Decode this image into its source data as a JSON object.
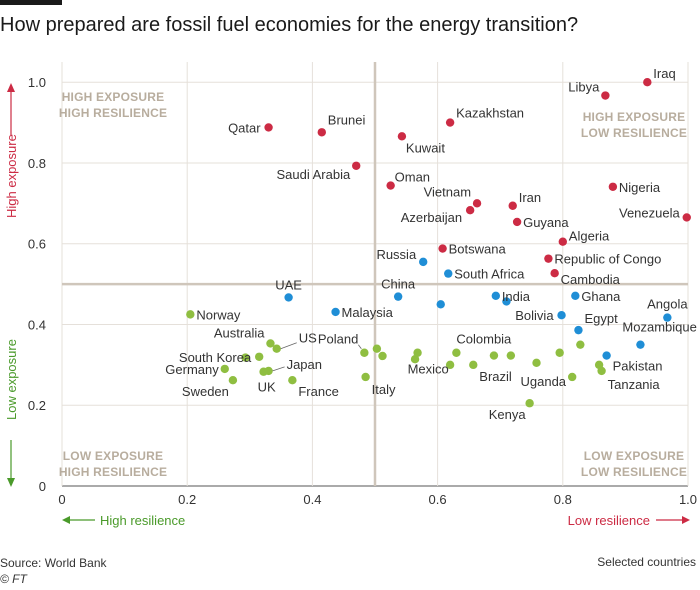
{
  "title": "How prepared are fossil fuel economies for the energy transition?",
  "footer": {
    "source": "Source: World Bank",
    "credit": "© FT",
    "note": "Selected countries"
  },
  "axes": {
    "y_high_label": "High exposure",
    "y_low_label": "Low exposure",
    "x_high_label": "High resilience",
    "x_low_label": "Low resilience"
  },
  "quadrants": {
    "top_left": [
      "HIGH EXPOSURE",
      "HIGH RESILIENCE"
    ],
    "top_right": [
      "HIGH EXPOSURE",
      "LOW RESILIENCE"
    ],
    "bottom_left": [
      "LOW EXPOSURE",
      "HIGH RESILIENCE"
    ],
    "bottom_right": [
      "LOW EXPOSURE",
      "LOW RESILIENCE"
    ]
  },
  "colors": {
    "red": "#cc2b44",
    "blue": "#1f8ed6",
    "green": "#8fbe41",
    "grid": "#e5e0da",
    "divider": "#cfc6bb",
    "quad_text": "#b8ad9e"
  },
  "chart_data": {
    "type": "scatter",
    "title": "How prepared are fossil fuel economies for the energy transition?",
    "xlim": [
      0,
      1
    ],
    "ylim": [
      0,
      1.05
    ],
    "xticks": [
      "0",
      "0.2",
      "0.4",
      "0.6",
      "0.8",
      "1.0"
    ],
    "yticks": [
      "0",
      "0.2",
      "0.4",
      "0.6",
      "0.8",
      "1.0"
    ],
    "thresholds": {
      "x": 0.5,
      "y": 0.5
    },
    "grid": true,
    "points": [
      {
        "name": "Iraq",
        "x": 0.935,
        "y": 1.0,
        "group": "red"
      },
      {
        "name": "Libya",
        "x": 0.868,
        "y": 0.967,
        "group": "red"
      },
      {
        "name": "Qatar",
        "x": 0.33,
        "y": 0.888,
        "group": "red"
      },
      {
        "name": "Brunei",
        "x": 0.415,
        "y": 0.876,
        "group": "red"
      },
      {
        "name": "Kuwait",
        "x": 0.543,
        "y": 0.866,
        "group": "red"
      },
      {
        "name": "Kazakhstan",
        "x": 0.62,
        "y": 0.9,
        "group": "red"
      },
      {
        "name": "Saudi Arabia",
        "x": 0.47,
        "y": 0.793,
        "group": "red"
      },
      {
        "name": "Oman",
        "x": 0.525,
        "y": 0.744,
        "group": "red"
      },
      {
        "name": "Nigeria",
        "x": 0.88,
        "y": 0.741,
        "group": "red"
      },
      {
        "name": "Vietnam",
        "x": 0.663,
        "y": 0.7,
        "group": "red"
      },
      {
        "name": "Azerbaijan",
        "x": 0.652,
        "y": 0.683,
        "group": "red"
      },
      {
        "name": "Iran",
        "x": 0.72,
        "y": 0.694,
        "group": "red"
      },
      {
        "name": "Guyana",
        "x": 0.727,
        "y": 0.654,
        "group": "red"
      },
      {
        "name": "Venezuela",
        "x": 0.998,
        "y": 0.665,
        "group": "red"
      },
      {
        "name": "Algeria",
        "x": 0.8,
        "y": 0.605,
        "group": "red"
      },
      {
        "name": "Botswana",
        "x": 0.608,
        "y": 0.588,
        "group": "red"
      },
      {
        "name": "Republic of Congo",
        "x": 0.777,
        "y": 0.563,
        "group": "red"
      },
      {
        "name": "Cambodia",
        "x": 0.787,
        "y": 0.527,
        "group": "red"
      },
      {
        "name": "Russia",
        "x": 0.577,
        "y": 0.555,
        "group": "blue"
      },
      {
        "name": "South Africa",
        "x": 0.617,
        "y": 0.526,
        "group": "blue"
      },
      {
        "name": "UAE",
        "x": 0.362,
        "y": 0.467,
        "group": "blue"
      },
      {
        "name": "China",
        "x": 0.537,
        "y": 0.469,
        "group": "blue"
      },
      {
        "name": "Malaysia",
        "x": 0.437,
        "y": 0.431,
        "group": "blue"
      },
      {
        "name": "India",
        "x": 0.693,
        "y": 0.471,
        "group": "blue"
      },
      {
        "name": "Ghana",
        "x": 0.82,
        "y": 0.471,
        "group": "blue"
      },
      {
        "name": "Angola",
        "x": 0.967,
        "y": 0.417,
        "group": "blue"
      },
      {
        "name": "Bolivia",
        "x": 0.798,
        "y": 0.423,
        "group": "blue"
      },
      {
        "name": "Egypt",
        "x": 0.825,
        "y": 0.386,
        "group": "blue"
      },
      {
        "name": "Mozambique",
        "x": 0.924,
        "y": 0.35,
        "group": "blue"
      },
      {
        "name": "Pakistan",
        "x": 0.87,
        "y": 0.323,
        "group": "blue"
      },
      {
        "name": "Norway",
        "x": 0.205,
        "y": 0.425,
        "group": "green"
      },
      {
        "name": "Australia",
        "x": 0.333,
        "y": 0.353,
        "group": "green"
      },
      {
        "name": "US",
        "x": 0.343,
        "y": 0.34,
        "group": "green"
      },
      {
        "name": "South Korea",
        "x": 0.315,
        "y": 0.32,
        "group": "green"
      },
      {
        "name": "Germany",
        "x": 0.26,
        "y": 0.29,
        "group": "green"
      },
      {
        "name": "Sweden",
        "x": 0.273,
        "y": 0.262,
        "group": "green"
      },
      {
        "name": "Japan",
        "x": 0.33,
        "y": 0.285,
        "group": "green"
      },
      {
        "name": "UK",
        "x": 0.322,
        "y": 0.283,
        "group": "green"
      },
      {
        "name": "France",
        "x": 0.368,
        "y": 0.262,
        "group": "green"
      },
      {
        "name": "Poland",
        "x": 0.483,
        "y": 0.33,
        "group": "green"
      },
      {
        "name": "Italy",
        "x": 0.485,
        "y": 0.27,
        "group": "green"
      },
      {
        "name": "Mexico",
        "x": 0.568,
        "y": 0.33,
        "group": "green"
      },
      {
        "name": "Colombia",
        "x": 0.63,
        "y": 0.33,
        "group": "green"
      },
      {
        "name": "Brazil",
        "x": 0.657,
        "y": 0.3,
        "group": "green"
      },
      {
        "name": "Uganda",
        "x": 0.758,
        "y": 0.305,
        "group": "green"
      },
      {
        "name": "Kenya",
        "x": 0.747,
        "y": 0.205,
        "group": "green"
      },
      {
        "name": "Tanzania",
        "x": 0.862,
        "y": 0.285,
        "group": "green"
      }
    ],
    "extra_points": [
      {
        "x": 0.503,
        "y": 0.34,
        "group": "green"
      },
      {
        "x": 0.512,
        "y": 0.322,
        "group": "green"
      },
      {
        "x": 0.564,
        "y": 0.314,
        "group": "green"
      },
      {
        "x": 0.62,
        "y": 0.3,
        "group": "green"
      },
      {
        "x": 0.69,
        "y": 0.323,
        "group": "green"
      },
      {
        "x": 0.717,
        "y": 0.323,
        "group": "green"
      },
      {
        "x": 0.795,
        "y": 0.33,
        "group": "green"
      },
      {
        "x": 0.815,
        "y": 0.27,
        "group": "green"
      },
      {
        "x": 0.828,
        "y": 0.35,
        "group": "green"
      },
      {
        "x": 0.858,
        "y": 0.3,
        "group": "green"
      },
      {
        "x": 0.293,
        "y": 0.318,
        "group": "green"
      },
      {
        "x": 0.605,
        "y": 0.45,
        "group": "blue"
      },
      {
        "x": 0.71,
        "y": 0.457,
        "group": "blue"
      }
    ]
  }
}
